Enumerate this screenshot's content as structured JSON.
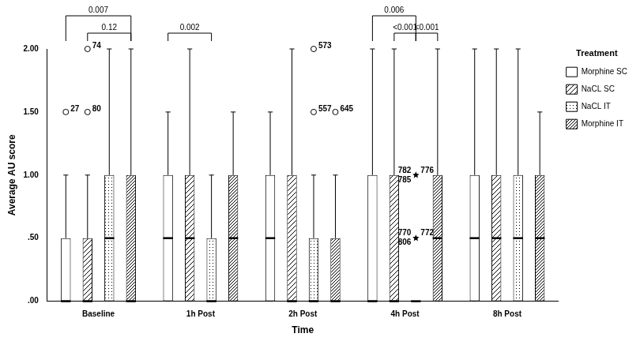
{
  "chart_data": {
    "type": "boxplot",
    "x_label": "Time",
    "y_label": "Average AU score",
    "categories": [
      "Baseline",
      "1h Post",
      "2h Post",
      "4h Post",
      "8h Post"
    ],
    "ylim": [
      0,
      2
    ],
    "yticks": [
      {
        "value": 0,
        "label": ".00"
      },
      {
        "value": 0.5,
        "label": ".50"
      },
      {
        "value": 1,
        "label": "1.00"
      },
      {
        "value": 1.5,
        "label": "1.50"
      },
      {
        "value": 2,
        "label": "2.00"
      }
    ],
    "grid": false,
    "legend": "right",
    "legend_title": "Treatment",
    "series": [
      {
        "name": "Morphine SC",
        "color": "#ffffff",
        "values": [
          {
            "min": 0,
            "q1": 0,
            "median": 0,
            "q3": 0.5,
            "max": 1
          },
          {
            "min": 0,
            "q1": 0,
            "median": 0.5,
            "q3": 1,
            "max": 1.5
          },
          {
            "min": 0,
            "q1": 0,
            "median": 0.5,
            "q3": 1,
            "max": 1.5
          },
          {
            "min": 0,
            "q1": 0,
            "median": 0,
            "q3": 1,
            "max": 2
          },
          {
            "min": 0,
            "q1": 0,
            "median": 0.5,
            "q3": 1,
            "max": 2
          }
        ],
        "outliers": [
          {
            "category": "Baseline",
            "value": 1.5,
            "marker": "circle",
            "labels": [
              "27"
            ]
          }
        ]
      },
      {
        "name": "NaCL SC",
        "color": "#ffffff",
        "values": [
          {
            "min": 0,
            "q1": 0,
            "median": 0,
            "q3": 0.5,
            "max": 1
          },
          {
            "min": 0,
            "q1": 0,
            "median": 0.5,
            "q3": 1,
            "max": 2
          },
          {
            "min": 0,
            "q1": 0,
            "median": 0,
            "q3": 1,
            "max": 2
          },
          {
            "min": 0,
            "q1": 0,
            "median": 0,
            "q3": 1,
            "max": 2
          },
          {
            "min": 0,
            "q1": 0,
            "median": 0.5,
            "q3": 1,
            "max": 2
          }
        ],
        "outliers": [
          {
            "category": "Baseline",
            "value": 2,
            "marker": "circle",
            "labels": [
              "74"
            ]
          },
          {
            "category": "Baseline",
            "value": 1.5,
            "marker": "circle",
            "labels": [
              "80"
            ]
          }
        ]
      },
      {
        "name": "NaCL IT",
        "color": "#ffffff",
        "values": [
          {
            "min": 0,
            "q1": 0,
            "median": 0.5,
            "q3": 1,
            "max": 2
          },
          {
            "min": 0,
            "q1": 0,
            "median": 0,
            "q3": 0.5,
            "max": 1
          },
          {
            "min": 0,
            "q1": 0,
            "median": 0,
            "q3": 0.5,
            "max": 1
          },
          {
            "min": 0,
            "q1": 0,
            "median": 0,
            "q3": 0,
            "max": 0
          },
          {
            "min": 0,
            "q1": 0,
            "median": 0.5,
            "q3": 1,
            "max": 2
          }
        ],
        "outliers": [
          {
            "category": "2h Post",
            "value": 2,
            "marker": "circle",
            "labels": [
              "573"
            ]
          },
          {
            "category": "2h Post",
            "value": 1.5,
            "marker": "circle",
            "labels": [
              "557"
            ]
          },
          {
            "category": "4h Post",
            "value": 1,
            "marker": "star",
            "labels": [
              "782",
              "776",
              "785"
            ]
          },
          {
            "category": "4h Post",
            "value": 0.5,
            "marker": "star",
            "labels": [
              "770",
              "772",
              "806"
            ]
          }
        ]
      },
      {
        "name": "Morphine IT",
        "color": "#ffffff",
        "values": [
          {
            "min": 0,
            "q1": 0,
            "median": 0,
            "q3": 1,
            "max": 2
          },
          {
            "min": 0,
            "q1": 0,
            "median": 0.5,
            "q3": 1,
            "max": 1.5
          },
          {
            "min": 0,
            "q1": 0,
            "median": 0,
            "q3": 0.5,
            "max": 1
          },
          {
            "min": 0,
            "q1": 0,
            "median": 0.5,
            "q3": 1,
            "max": 2
          },
          {
            "min": 0,
            "q1": 0,
            "median": 0.5,
            "q3": 1,
            "max": 1.5
          }
        ],
        "outliers": [
          {
            "category": "2h Post",
            "value": 1.5,
            "marker": "circle",
            "labels": [
              "645"
            ]
          }
        ]
      }
    ],
    "comparisons": [
      {
        "category": "Baseline",
        "from": "Morphine SC",
        "to": "Morphine IT",
        "label": "0.007"
      },
      {
        "category": "Baseline",
        "from": "NaCL SC",
        "to": "Morphine IT",
        "label": "0.12"
      },
      {
        "category": "1h Post",
        "from": "Morphine SC",
        "to": "NaCL IT",
        "label": "0.002"
      },
      {
        "category": "4h Post",
        "from": "Morphine SC",
        "to": "NaCL IT",
        "label": "0.006"
      },
      {
        "category": "4h Post",
        "from": "NaCL SC",
        "to": "NaCL IT",
        "label": "<0.001"
      },
      {
        "category": "4h Post",
        "from": "NaCL IT",
        "to": "Morphine IT",
        "label": "<0.001"
      }
    ]
  }
}
